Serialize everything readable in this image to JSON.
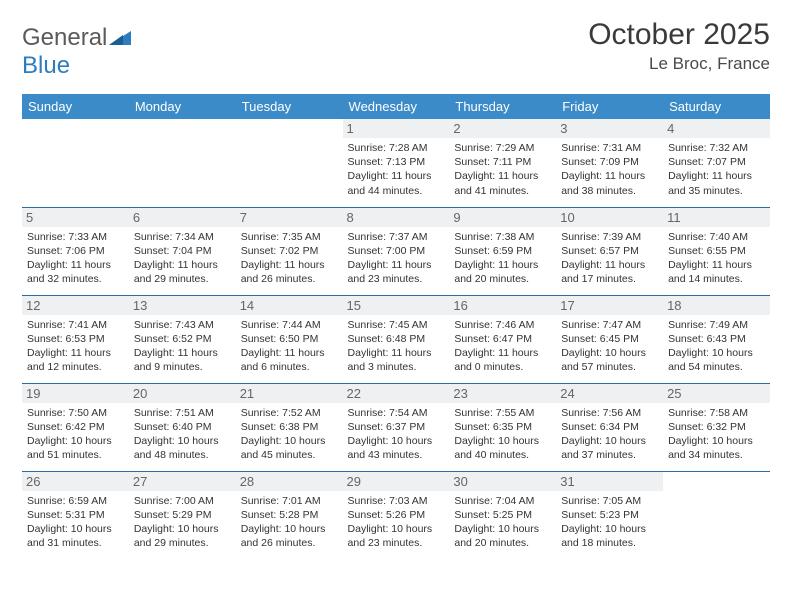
{
  "logo": {
    "text1": "General",
    "text2": "Blue"
  },
  "title": "October 2025",
  "location": "Le Broc, France",
  "colors": {
    "header_bg": "#3b8bc9",
    "header_text": "#ffffff",
    "cell_border": "#2c6ca0",
    "daynum_bg": "#eef0f2",
    "daynum_text": "#666666",
    "body_text": "#333333",
    "logo_gray": "#5a5a5a",
    "logo_blue": "#2e7cc0"
  },
  "weekdays": [
    "Sunday",
    "Monday",
    "Tuesday",
    "Wednesday",
    "Thursday",
    "Friday",
    "Saturday"
  ],
  "leading_blanks": 3,
  "days": [
    {
      "n": 1,
      "sr": "7:28 AM",
      "ss": "7:13 PM",
      "dl": "11 hours and 44 minutes."
    },
    {
      "n": 2,
      "sr": "7:29 AM",
      "ss": "7:11 PM",
      "dl": "11 hours and 41 minutes."
    },
    {
      "n": 3,
      "sr": "7:31 AM",
      "ss": "7:09 PM",
      "dl": "11 hours and 38 minutes."
    },
    {
      "n": 4,
      "sr": "7:32 AM",
      "ss": "7:07 PM",
      "dl": "11 hours and 35 minutes."
    },
    {
      "n": 5,
      "sr": "7:33 AM",
      "ss": "7:06 PM",
      "dl": "11 hours and 32 minutes."
    },
    {
      "n": 6,
      "sr": "7:34 AM",
      "ss": "7:04 PM",
      "dl": "11 hours and 29 minutes."
    },
    {
      "n": 7,
      "sr": "7:35 AM",
      "ss": "7:02 PM",
      "dl": "11 hours and 26 minutes."
    },
    {
      "n": 8,
      "sr": "7:37 AM",
      "ss": "7:00 PM",
      "dl": "11 hours and 23 minutes."
    },
    {
      "n": 9,
      "sr": "7:38 AM",
      "ss": "6:59 PM",
      "dl": "11 hours and 20 minutes."
    },
    {
      "n": 10,
      "sr": "7:39 AM",
      "ss": "6:57 PM",
      "dl": "11 hours and 17 minutes."
    },
    {
      "n": 11,
      "sr": "7:40 AM",
      "ss": "6:55 PM",
      "dl": "11 hours and 14 minutes."
    },
    {
      "n": 12,
      "sr": "7:41 AM",
      "ss": "6:53 PM",
      "dl": "11 hours and 12 minutes."
    },
    {
      "n": 13,
      "sr": "7:43 AM",
      "ss": "6:52 PM",
      "dl": "11 hours and 9 minutes."
    },
    {
      "n": 14,
      "sr": "7:44 AM",
      "ss": "6:50 PM",
      "dl": "11 hours and 6 minutes."
    },
    {
      "n": 15,
      "sr": "7:45 AM",
      "ss": "6:48 PM",
      "dl": "11 hours and 3 minutes."
    },
    {
      "n": 16,
      "sr": "7:46 AM",
      "ss": "6:47 PM",
      "dl": "11 hours and 0 minutes."
    },
    {
      "n": 17,
      "sr": "7:47 AM",
      "ss": "6:45 PM",
      "dl": "10 hours and 57 minutes."
    },
    {
      "n": 18,
      "sr": "7:49 AM",
      "ss": "6:43 PM",
      "dl": "10 hours and 54 minutes."
    },
    {
      "n": 19,
      "sr": "7:50 AM",
      "ss": "6:42 PM",
      "dl": "10 hours and 51 minutes."
    },
    {
      "n": 20,
      "sr": "7:51 AM",
      "ss": "6:40 PM",
      "dl": "10 hours and 48 minutes."
    },
    {
      "n": 21,
      "sr": "7:52 AM",
      "ss": "6:38 PM",
      "dl": "10 hours and 45 minutes."
    },
    {
      "n": 22,
      "sr": "7:54 AM",
      "ss": "6:37 PM",
      "dl": "10 hours and 43 minutes."
    },
    {
      "n": 23,
      "sr": "7:55 AM",
      "ss": "6:35 PM",
      "dl": "10 hours and 40 minutes."
    },
    {
      "n": 24,
      "sr": "7:56 AM",
      "ss": "6:34 PM",
      "dl": "10 hours and 37 minutes."
    },
    {
      "n": 25,
      "sr": "7:58 AM",
      "ss": "6:32 PM",
      "dl": "10 hours and 34 minutes."
    },
    {
      "n": 26,
      "sr": "6:59 AM",
      "ss": "5:31 PM",
      "dl": "10 hours and 31 minutes."
    },
    {
      "n": 27,
      "sr": "7:00 AM",
      "ss": "5:29 PM",
      "dl": "10 hours and 29 minutes."
    },
    {
      "n": 28,
      "sr": "7:01 AM",
      "ss": "5:28 PM",
      "dl": "10 hours and 26 minutes."
    },
    {
      "n": 29,
      "sr": "7:03 AM",
      "ss": "5:26 PM",
      "dl": "10 hours and 23 minutes."
    },
    {
      "n": 30,
      "sr": "7:04 AM",
      "ss": "5:25 PM",
      "dl": "10 hours and 20 minutes."
    },
    {
      "n": 31,
      "sr": "7:05 AM",
      "ss": "5:23 PM",
      "dl": "10 hours and 18 minutes."
    }
  ],
  "labels": {
    "sunrise": "Sunrise: ",
    "sunset": "Sunset: ",
    "daylight": "Daylight: "
  }
}
